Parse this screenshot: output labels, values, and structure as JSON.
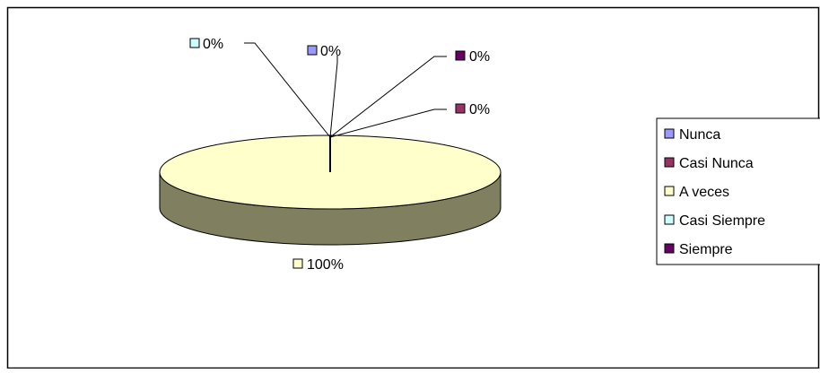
{
  "chart_data": {
    "type": "pie",
    "style": "3d",
    "title": "",
    "categories": [
      "Nunca",
      "Casi Nunca",
      "A veces",
      "Casi Siempre",
      "Siempre"
    ],
    "values": [
      0,
      0,
      100,
      0,
      0
    ],
    "unit": "%",
    "data_labels": [
      "0%",
      "0%",
      "100%",
      "0%",
      "0%"
    ],
    "colors": [
      "#9999FF",
      "#993366",
      "#FFFFCC",
      "#CCFFFF",
      "#660066"
    ],
    "legend": {
      "position": "right",
      "entries": [
        "Nunca",
        "Casi Nunca",
        "A veces",
        "Casi Siempre",
        "Siempre"
      ]
    },
    "pie_side_color": "#808060"
  }
}
